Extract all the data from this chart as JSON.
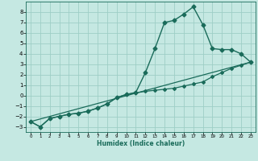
{
  "xlabel": "Humidex (Indice chaleur)",
  "bg_color": "#c5e8e2",
  "grid_color": "#9ecec6",
  "line_color": "#1a6b5a",
  "xlim": [
    -0.5,
    23.5
  ],
  "ylim": [
    -3.5,
    9.0
  ],
  "yticks": [
    -3,
    -2,
    -1,
    0,
    1,
    2,
    3,
    4,
    5,
    6,
    7,
    8
  ],
  "xticks": [
    0,
    1,
    2,
    3,
    4,
    5,
    6,
    7,
    8,
    9,
    10,
    11,
    12,
    13,
    14,
    15,
    16,
    17,
    18,
    19,
    20,
    21,
    22,
    23
  ],
  "curve1_x": [
    0,
    1,
    2,
    3,
    4,
    5,
    6,
    7,
    8,
    9,
    10,
    11,
    12,
    13,
    14,
    15,
    16,
    17,
    18,
    19,
    20,
    21,
    22,
    23
  ],
  "curve1_y": [
    -2.5,
    -3.0,
    -2.2,
    -2.0,
    -1.8,
    -1.7,
    -1.5,
    -1.2,
    -0.8,
    -0.2,
    0.1,
    0.3,
    2.2,
    4.5,
    7.0,
    7.2,
    7.8,
    8.5,
    6.8,
    4.5,
    4.4,
    4.4,
    4.0,
    3.2
  ],
  "curve2_x": [
    0,
    1,
    2,
    3,
    4,
    5,
    6,
    7,
    8,
    9,
    10,
    11,
    12,
    13,
    14,
    15,
    16,
    17,
    18,
    19,
    20,
    21,
    22,
    23
  ],
  "curve2_y": [
    -2.5,
    -3.0,
    -2.2,
    -2.0,
    -1.8,
    -1.7,
    -1.5,
    -1.2,
    -0.8,
    -0.2,
    0.1,
    0.25,
    0.4,
    0.5,
    0.6,
    0.7,
    0.9,
    1.1,
    1.3,
    1.8,
    2.2,
    2.6,
    2.9,
    3.2
  ],
  "curve3_x": [
    0,
    23
  ],
  "curve3_y": [
    -2.5,
    3.2
  ],
  "marker_size1": 2.5,
  "marker_size2": 2.0,
  "lw1": 1.0,
  "lw2": 0.9,
  "lw3": 0.9,
  "xlabel_fontsize": 5.5,
  "tick_fontsize_x": 4.0,
  "tick_fontsize_y": 5.0
}
